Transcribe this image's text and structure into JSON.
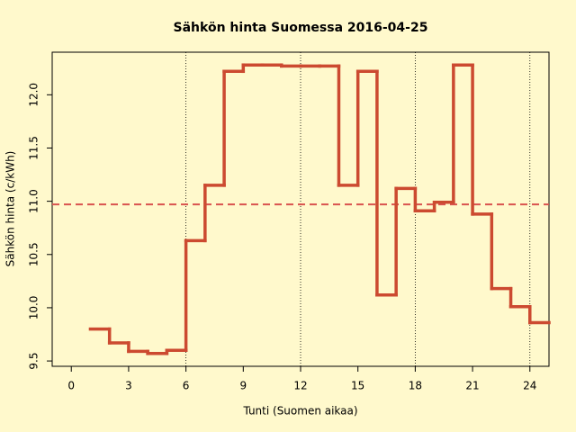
{
  "chart_data": {
    "type": "step",
    "title": "Sähkön hinta Suomessa 2016-04-25",
    "xlabel": "Tunti (Suomen aikaa)",
    "ylabel": "Sähkön hinta (c/kWh)",
    "x": [
      1,
      2,
      3,
      4,
      5,
      6,
      7,
      8,
      9,
      10,
      11,
      12,
      13,
      14,
      15,
      16,
      17,
      18,
      19,
      20,
      21,
      22,
      23,
      24
    ],
    "values": [
      9.8,
      9.67,
      9.59,
      9.57,
      9.6,
      10.63,
      11.15,
      12.22,
      12.28,
      12.28,
      12.27,
      12.27,
      12.27,
      11.15,
      12.22,
      10.12,
      11.12,
      10.91,
      10.99,
      12.28,
      10.88,
      10.18,
      10.01,
      9.86
    ],
    "color": "#cc4a30",
    "mean_line": 10.97,
    "mean_color": "#d9534f",
    "vlines": [
      6,
      12,
      18,
      24
    ],
    "xlim": [
      -1,
      25
    ],
    "xticks": [
      0,
      3,
      6,
      9,
      12,
      15,
      18,
      21,
      24
    ],
    "ylim": [
      9.45,
      12.4
    ],
    "yticks": [
      {
        "value": 9.5,
        "label": "9.5"
      },
      {
        "value": 10,
        "label": "10.0"
      },
      {
        "value": 10.5,
        "label": "10.5"
      },
      {
        "value": 11,
        "label": "11.0"
      },
      {
        "value": 11.5,
        "label": "11.5"
      },
      {
        "value": 12,
        "label": "12.0"
      }
    ]
  }
}
